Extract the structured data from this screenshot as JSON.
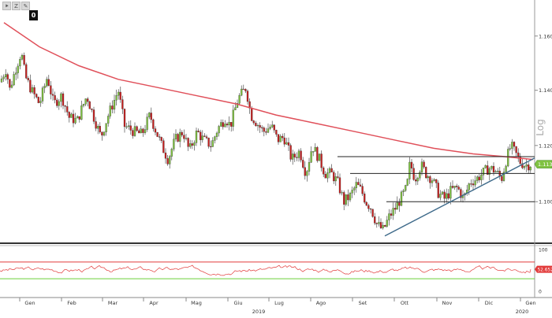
{
  "toolbar": {
    "buttons": [
      {
        "icon": "pointer-icon",
        "label": "⯈"
      },
      {
        "icon": "zoom-icon",
        "label": "Z"
      },
      {
        "icon": "draw-icon",
        "label": "✎"
      }
    ],
    "badge": "0"
  },
  "chart_data": [
    {
      "type": "candlestick",
      "scale": "log",
      "scale_label": "Log",
      "y_ticks": [
        "1.1600",
        "1.1400",
        "1.1200",
        "1.1000"
      ],
      "y_tick_values": [
        1.16,
        1.14,
        1.12,
        1.1
      ],
      "ylim": [
        1.086,
        1.172
      ],
      "x_tick_labels": [
        "Gen",
        "Feb",
        "Mar",
        "Apr",
        "Mag",
        "Giu",
        "Lug",
        "Ago",
        "Set",
        "Ott",
        "Nov",
        "Dic",
        "Gen"
      ],
      "x_year_labels": [
        "2019",
        "2020"
      ],
      "last_price_label": "1.1133",
      "last_price": 1.1133,
      "colors": {
        "up": "#7fc241",
        "down": "#c8201f",
        "moving_average": "#e0505a",
        "trendline": "#3e6a8a",
        "levels": "#222222"
      },
      "price_path": [
        [
          0,
          1.143
        ],
        [
          8,
          1.148
        ],
        [
          12,
          1.14
        ],
        [
          20,
          1.148
        ],
        [
          27,
          1.154
        ],
        [
          32,
          1.145
        ],
        [
          40,
          1.14
        ],
        [
          50,
          1.135
        ],
        [
          60,
          1.145
        ],
        [
          68,
          1.135
        ],
        [
          78,
          1.138
        ],
        [
          88,
          1.13
        ],
        [
          98,
          1.129
        ],
        [
          110,
          1.138
        ],
        [
          118,
          1.131
        ],
        [
          128,
          1.123
        ],
        [
          136,
          1.13
        ],
        [
          150,
          1.14
        ],
        [
          158,
          1.127
        ],
        [
          170,
          1.125
        ],
        [
          180,
          1.124
        ],
        [
          190,
          1.131
        ],
        [
          198,
          1.125
        ],
        [
          205,
          1.12
        ],
        [
          213,
          1.115
        ],
        [
          222,
          1.122
        ],
        [
          232,
          1.125
        ],
        [
          240,
          1.118
        ],
        [
          250,
          1.125
        ],
        [
          258,
          1.122
        ],
        [
          268,
          1.12
        ],
        [
          276,
          1.126
        ],
        [
          286,
          1.13
        ],
        [
          292,
          1.127
        ],
        [
          302,
          1.137
        ],
        [
          312,
          1.141
        ],
        [
          318,
          1.131
        ],
        [
          326,
          1.128
        ],
        [
          334,
          1.125
        ],
        [
          344,
          1.127
        ],
        [
          352,
          1.122
        ],
        [
          360,
          1.123
        ],
        [
          370,
          1.115
        ],
        [
          380,
          1.118
        ],
        [
          388,
          1.11
        ],
        [
          396,
          1.12
        ],
        [
          405,
          1.115
        ],
        [
          412,
          1.11
        ],
        [
          420,
          1.11
        ],
        [
          428,
          1.107
        ],
        [
          436,
          1.1
        ],
        [
          444,
          1.102
        ],
        [
          452,
          1.106
        ],
        [
          458,
          1.104
        ],
        [
          464,
          1.1
        ],
        [
          470,
          1.098
        ],
        [
          478,
          1.092
        ],
        [
          486,
          1.09
        ],
        [
          494,
          1.095
        ],
        [
          502,
          1.098
        ],
        [
          510,
          1.102
        ],
        [
          516,
          1.105
        ],
        [
          520,
          1.114
        ],
        [
          526,
          1.108
        ],
        [
          534,
          1.113
        ],
        [
          540,
          1.11
        ],
        [
          548,
          1.108
        ],
        [
          556,
          1.103
        ],
        [
          564,
          1.101
        ],
        [
          572,
          1.104
        ],
        [
          580,
          1.105
        ],
        [
          588,
          1.101
        ],
        [
          596,
          1.107
        ],
        [
          604,
          1.108
        ],
        [
          612,
          1.11
        ],
        [
          620,
          1.112
        ],
        [
          628,
          1.111
        ],
        [
          636,
          1.108
        ],
        [
          642,
          1.115
        ],
        [
          648,
          1.12
        ],
        [
          654,
          1.117
        ],
        [
          660,
          1.114
        ],
        [
          666,
          1.113
        ],
        [
          673,
          1.1133
        ]
      ],
      "moving_average": [
        [
          5,
          1.165
        ],
        [
          50,
          1.156
        ],
        [
          100,
          1.149
        ],
        [
          150,
          1.144
        ],
        [
          200,
          1.141
        ],
        [
          250,
          1.138
        ],
        [
          300,
          1.135
        ],
        [
          350,
          1.131
        ],
        [
          400,
          1.128
        ],
        [
          450,
          1.125
        ],
        [
          500,
          1.122
        ],
        [
          550,
          1.119
        ],
        [
          600,
          1.117
        ],
        [
          640,
          1.116
        ],
        [
          676,
          1.115
        ]
      ],
      "horizontal_levels": [
        {
          "value": 1.116,
          "x_from": 428,
          "x_to": 678
        },
        {
          "value": 1.11,
          "x_from": 444,
          "x_to": 678
        },
        {
          "value": 1.1,
          "x_from": 490,
          "x_to": 678
        }
      ],
      "trendline": {
        "from": [
          488,
          1.088
        ],
        "to": [
          678,
          1.1155
        ]
      }
    },
    {
      "type": "line",
      "name": "RSI",
      "y_ticks": [
        "100",
        "0"
      ],
      "ylim": [
        0,
        100
      ],
      "last_value_label": "52.6529",
      "last_value": 52.65,
      "overbought": 70,
      "oversold": 30,
      "colors": {
        "line": "#e23a3a",
        "overbought": "#e23a3a",
        "oversold": "#6bcf3a"
      }
    }
  ]
}
